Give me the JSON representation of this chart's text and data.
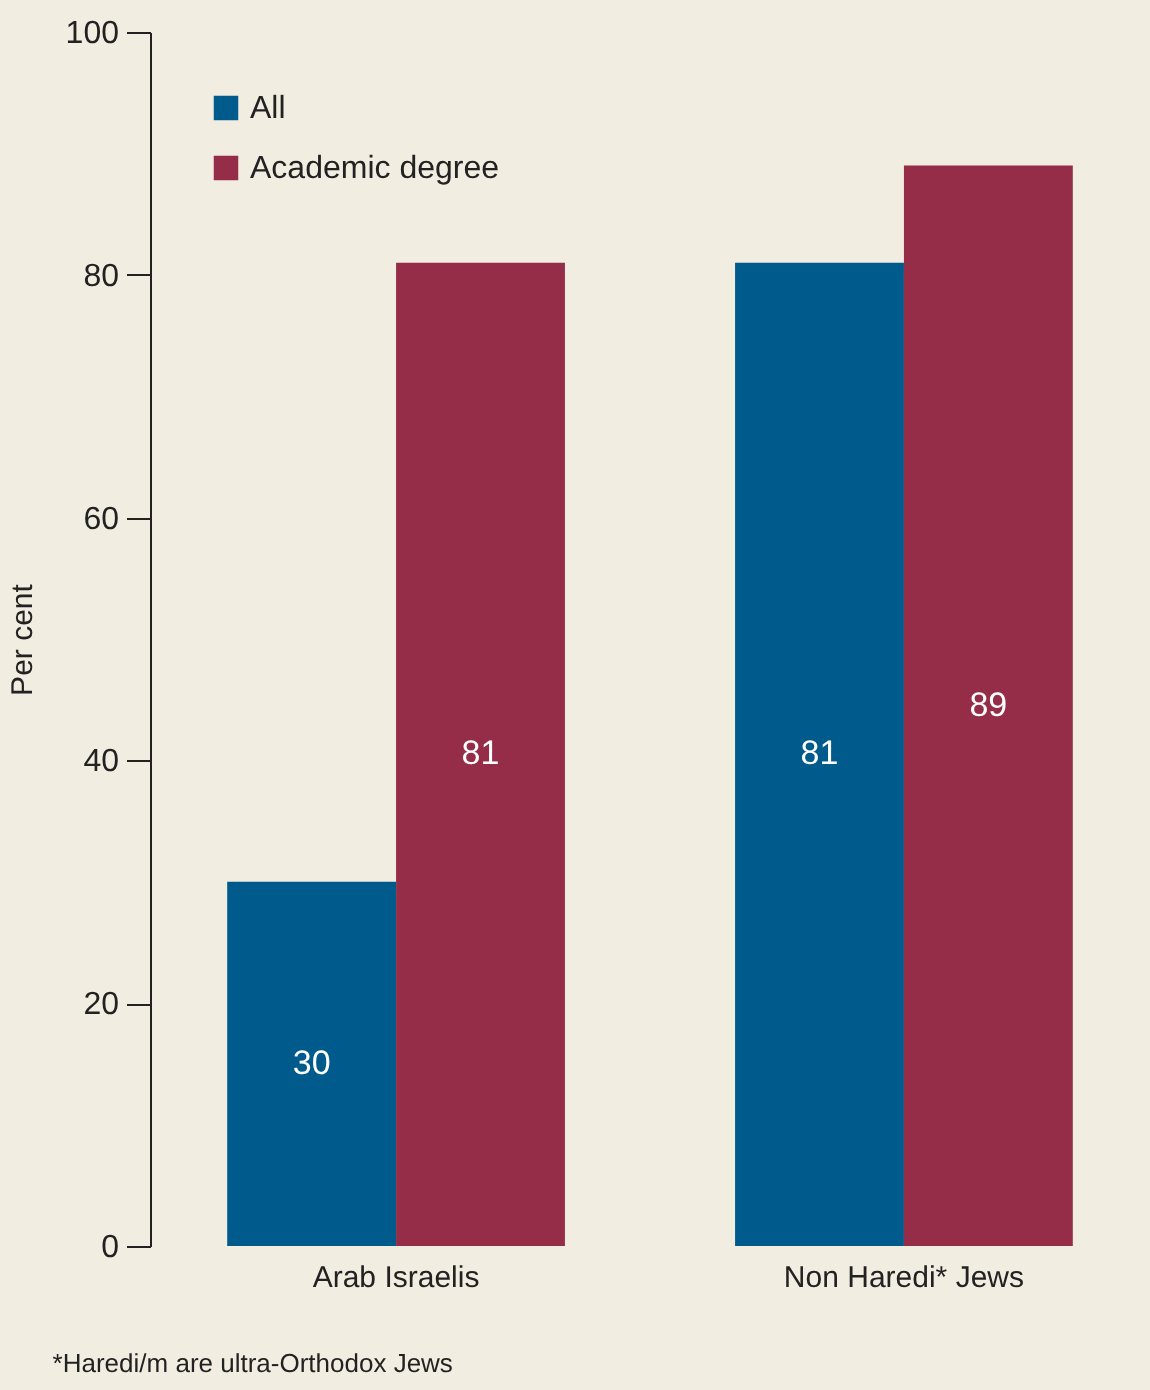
{
  "chart_data": {
    "type": "bar",
    "ylabel": "Per cent",
    "categories": [
      "Arab Israelis",
      "Non Haredi* Jews"
    ],
    "series": [
      {
        "name": "All",
        "color": "#005b8c",
        "values": [
          30,
          81
        ]
      },
      {
        "name": "Academic degree",
        "color": "#952d48",
        "values": [
          81,
          89
        ]
      }
    ],
    "ylim": [
      0,
      100
    ],
    "yticks": [
      0,
      20,
      40,
      60,
      80,
      100
    ],
    "legend": "top left",
    "data_labels": true,
    "annotations": [
      "*Haredi/m are ultra-Orthodox Jews"
    ]
  }
}
